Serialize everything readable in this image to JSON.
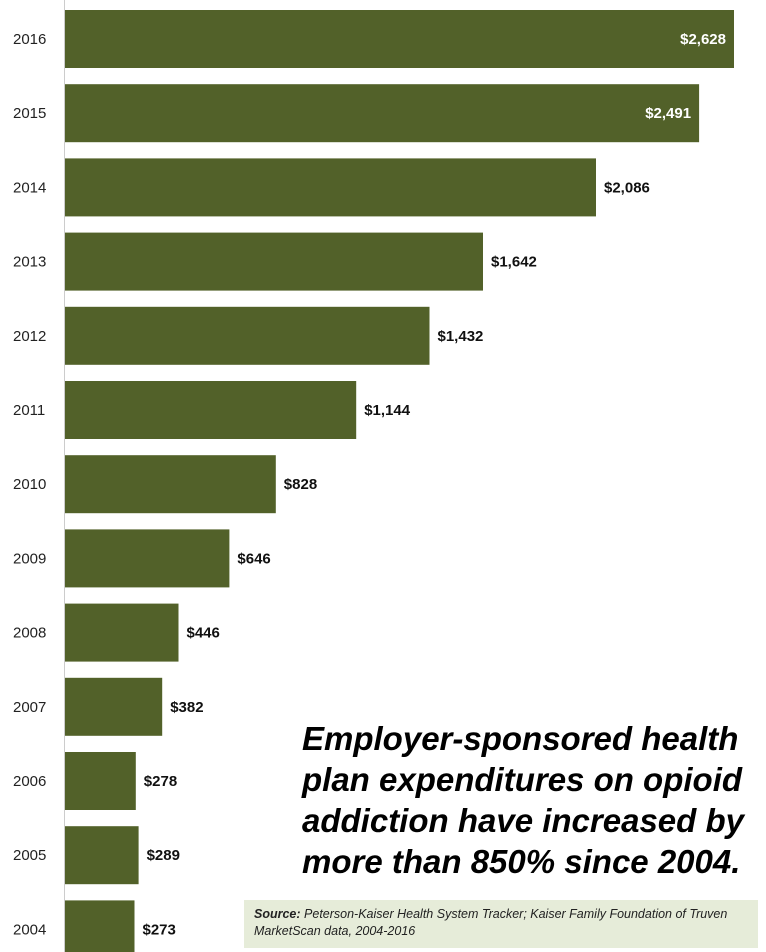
{
  "chart_data": {
    "type": "bar",
    "orientation": "horizontal",
    "title": "",
    "xlabel": "",
    "ylabel": "",
    "categories": [
      "2016",
      "2015",
      "2014",
      "2013",
      "2012",
      "2011",
      "2010",
      "2009",
      "2008",
      "2007",
      "2006",
      "2005",
      "2004"
    ],
    "values": [
      2628,
      2491,
      2086,
      1642,
      1432,
      1144,
      828,
      646,
      446,
      382,
      278,
      289,
      273
    ],
    "value_labels": [
      "$2,628",
      "$2,491",
      "$2,086",
      "$1,642",
      "$1,432",
      "$1,144",
      "$828",
      "$646",
      "$446",
      "$382",
      "$278",
      "$289",
      "$273"
    ],
    "xlim": [
      0,
      2628
    ],
    "grid": false,
    "bar_color": "#526129"
  },
  "annotation": {
    "headline": "Employer-sponsored health plan expenditures on opioid addiction have increased by more than 850% since 2004."
  },
  "source": {
    "key": "Source:",
    "text": "Peterson-Kaiser Health System Tracker; Kaiser Family Foundation of Truven MarketScan data, 2004-2016"
  }
}
